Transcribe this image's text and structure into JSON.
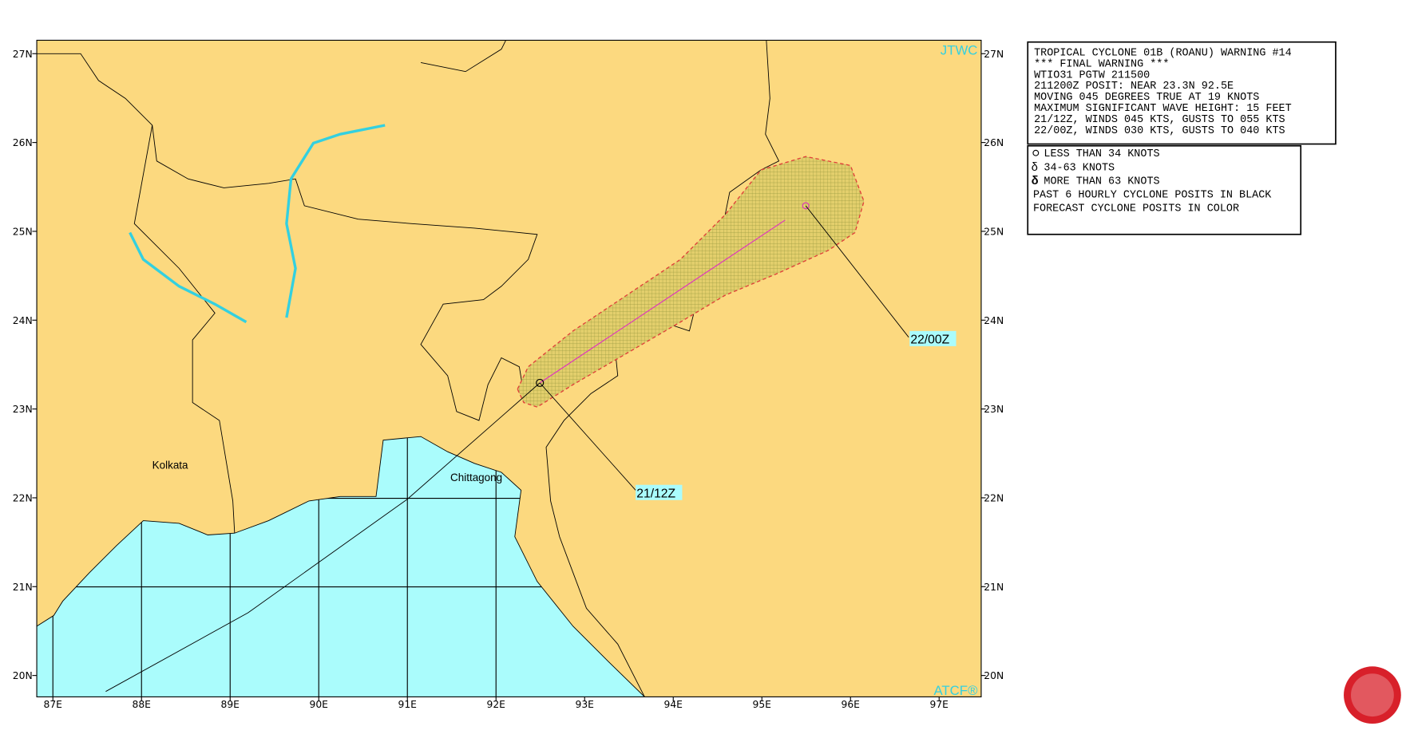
{
  "map": {
    "agency_top": "JTWC",
    "agency_bottom": "ATCF®",
    "lon_labels": [
      "87E",
      "88E",
      "89E",
      "90E",
      "91E",
      "92E",
      "93E",
      "94E",
      "95E",
      "96E",
      "97E"
    ],
    "lat_labels": [
      "27N",
      "26N",
      "25N",
      "24N",
      "23N",
      "22N",
      "21N",
      "20N"
    ],
    "places": [
      "Kolkata",
      "Chittagong"
    ],
    "track_labels": [
      "21/12Z",
      "22/00Z"
    ]
  },
  "warning": {
    "lines": [
      "TROPICAL CYCLONE 01B (ROANU) WARNING #14",
      "*** FINAL WARNING ***",
      "WTIO31 PGTW 211500",
      "211200Z POSIT: NEAR 23.3N 92.5E",
      "MOVING 045 DEGREES TRUE AT 19 KNOTS",
      "MAXIMUM SIGNIFICANT WAVE HEIGHT: 15 FEET",
      "21/12Z, WINDS 045 KTS, GUSTS TO 055 KTS",
      "22/00Z, WINDS 030 KTS, GUSTS TO 040 KTS"
    ]
  },
  "legend": {
    "lines": [
      "LESS THAN 34 KNOTS",
      "34-63 KNOTS",
      "MORE THAN 63 KNOTS",
      "PAST 6 HOURLY CYCLONE POSITS IN BLACK",
      "FORECAST CYCLONE POSITS IN COLOR"
    ]
  }
}
